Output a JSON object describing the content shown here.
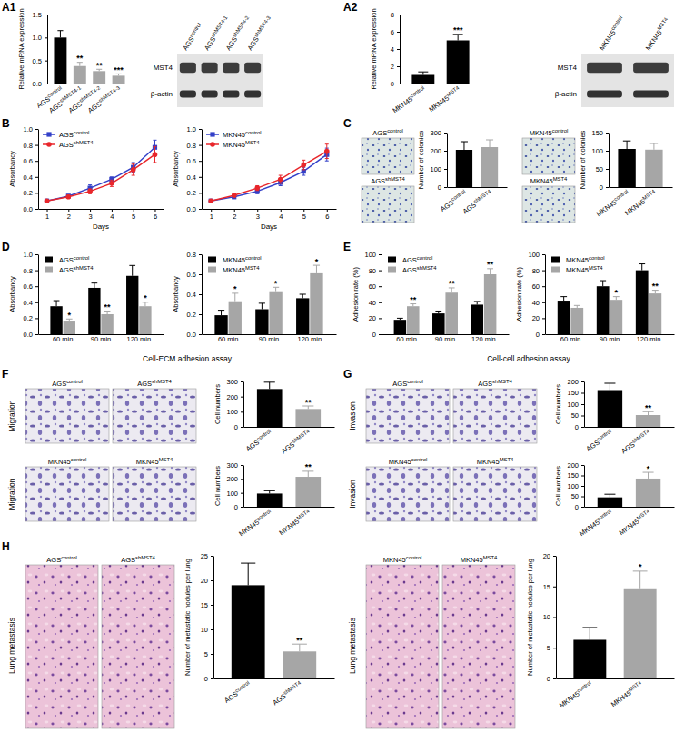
{
  "chart_data": [
    {
      "type": "bar",
      "ylabel": "Relative mRNA expression",
      "categories": [
        "AGScontrol",
        "AGSshMST4-1",
        "AGSshMST4-2",
        "AGSshMST4-3"
      ],
      "values": [
        1.0,
        0.38,
        0.27,
        0.17
      ],
      "errors": [
        0.15,
        0.08,
        0.04,
        0.04
      ],
      "annotations": [
        null,
        "**",
        "**",
        "***"
      ],
      "colors": [
        "#000000",
        "#a6a6a6",
        "#a6a6a6",
        "#a6a6a6"
      ],
      "ylim": [
        0,
        1.5
      ],
      "yticks": [
        {
          "value": 0,
          "label": "0.0"
        },
        0.5,
        {
          "value": 1,
          "label": "1.0"
        },
        1.5
      ]
    },
    {
      "type": "bar",
      "ylabel": "Relative mRNA expression",
      "categories": [
        "MKN45control",
        "MKN45MST4"
      ],
      "values": [
        1.0,
        5.0
      ],
      "errors": [
        0.35,
        0.7
      ],
      "annotations": [
        null,
        "***"
      ],
      "colors": [
        "#000000",
        "#000000"
      ],
      "ylim": [
        0,
        8
      ],
      "yticks": [
        0,
        2,
        4,
        6,
        8
      ]
    },
    {
      "type": "line",
      "ylabel": "Absorbancy",
      "xlabel": "Days",
      "x": [
        1,
        2,
        3,
        4,
        5,
        6
      ],
      "xlim": [
        0.6,
        6.4
      ],
      "xticks": [
        1,
        2,
        3,
        4,
        5,
        6
      ],
      "ylim": [
        0,
        1
      ],
      "yticks": [
        {
          "value": 0,
          "label": "0.0"
        },
        0.2,
        0.4,
        0.6,
        0.8,
        {
          "value": 1,
          "label": "1.0"
        }
      ],
      "legend": "upper left",
      "series": [
        {
          "name": "AGScontrol",
          "color": "#3340c8",
          "marker": "square",
          "values": [
            0.1,
            0.16,
            0.26,
            0.37,
            0.52,
            0.77
          ],
          "errors": [
            0.01,
            0.02,
            0.04,
            0.03,
            0.06,
            0.09
          ]
        },
        {
          "name": "AGSshMST4",
          "color": "#e8262b",
          "marker": "circle",
          "values": [
            0.1,
            0.15,
            0.22,
            0.32,
            0.49,
            0.68
          ],
          "errors": [
            0.01,
            0.02,
            0.03,
            0.04,
            0.07,
            0.1
          ]
        }
      ]
    },
    {
      "type": "line",
      "ylabel": "Absorbancy",
      "xlabel": "Days",
      "x": [
        1,
        2,
        3,
        4,
        5,
        6
      ],
      "xlim": [
        0.6,
        6.4
      ],
      "xticks": [
        1,
        2,
        3,
        4,
        5,
        6
      ],
      "ylim": [
        0,
        1
      ],
      "yticks": [
        {
          "value": 0,
          "label": "0.0"
        },
        0.2,
        0.4,
        0.6,
        0.8,
        {
          "value": 1,
          "label": "1.0"
        }
      ],
      "legend": "upper left",
      "series": [
        {
          "name": "MKN45control",
          "color": "#3340c8",
          "marker": "square",
          "values": [
            0.1,
            0.15,
            0.22,
            0.33,
            0.47,
            0.68
          ],
          "errors": [
            0.01,
            0.02,
            0.03,
            0.04,
            0.05,
            0.08
          ]
        },
        {
          "name": "MKN45MST4",
          "color": "#e8262b",
          "marker": "circle",
          "values": [
            0.1,
            0.17,
            0.26,
            0.37,
            0.55,
            0.72
          ],
          "errors": [
            0.01,
            0.02,
            0.03,
            0.05,
            0.06,
            0.09
          ]
        }
      ]
    },
    {
      "type": "bar",
      "ylabel": "Number of colonies",
      "categories": [
        "AGScontrol",
        "AGSshMST4"
      ],
      "values": [
        205,
        220
      ],
      "errors": [
        45,
        40
      ],
      "colors": [
        "#000000",
        "#a6a6a6"
      ],
      "ylim": [
        0,
        300
      ],
      "yticks": [
        0,
        100,
        200,
        300
      ]
    },
    {
      "type": "bar",
      "ylabel": "Number of colonies",
      "categories": [
        "MKN45control",
        "MKN45MST4"
      ],
      "values": [
        105,
        103
      ],
      "errors": [
        22,
        17
      ],
      "colors": [
        "#000000",
        "#a6a6a6"
      ],
      "ylim": [
        0,
        150
      ],
      "yticks": [
        0,
        50,
        100,
        150
      ]
    },
    {
      "type": "bar",
      "ylabel": "Absorbancy",
      "categories": [
        "60 min",
        "90 min",
        "120 min"
      ],
      "ylim": [
        0,
        1
      ],
      "yticks": [
        {
          "value": 0,
          "label": "0.0"
        },
        0.2,
        0.4,
        0.6,
        0.8,
        {
          "value": 1,
          "label": "1.0"
        }
      ],
      "legend": "upper left",
      "series": [
        {
          "name": "AGScontrol",
          "color": "#000000",
          "values": [
            0.35,
            0.58,
            0.73
          ],
          "errors": [
            0.07,
            0.06,
            0.13
          ]
        },
        {
          "name": "AGSshMST4",
          "color": "#a6a6a6",
          "values": [
            0.17,
            0.25,
            0.35
          ],
          "errors": [
            0.02,
            0.04,
            0.05
          ],
          "annotations": [
            "*",
            "**",
            "*"
          ]
        }
      ]
    },
    {
      "type": "bar",
      "ylabel": "Absorbancy",
      "categories": [
        "60 min",
        "90 min",
        "120 min"
      ],
      "ylim": [
        0,
        0.8
      ],
      "yticks": [
        {
          "value": 0,
          "label": "0.0"
        },
        0.2,
        0.4,
        0.6,
        0.8
      ],
      "legend": "upper left",
      "series": [
        {
          "name": "MKN45control",
          "color": "#000000",
          "values": [
            0.19,
            0.25,
            0.36
          ],
          "errors": [
            0.05,
            0.06,
            0.04
          ]
        },
        {
          "name": "MKN45MST4",
          "color": "#a6a6a6",
          "values": [
            0.33,
            0.43,
            0.61
          ],
          "errors": [
            0.08,
            0.04,
            0.08
          ],
          "annotations": [
            "*",
            "*",
            "*"
          ]
        }
      ]
    },
    {
      "type": "bar",
      "ylabel": "Adhesion rate (%)",
      "categories": [
        "60 min",
        "90 min",
        "120 min"
      ],
      "ylim": [
        0,
        100
      ],
      "yticks": [
        0,
        20,
        40,
        60,
        80,
        100
      ],
      "legend": "upper left",
      "series": [
        {
          "name": "AGScontrol",
          "color": "#000000",
          "values": [
            18,
            26,
            37
          ],
          "errors": [
            2,
            3,
            4
          ]
        },
        {
          "name": "AGSshMST4",
          "color": "#a6a6a6",
          "values": [
            35,
            52,
            75
          ],
          "errors": [
            3,
            6,
            7
          ],
          "annotations": [
            "**",
            "**",
            "**"
          ]
        }
      ]
    },
    {
      "type": "bar",
      "ylabel": "Adhesion rate (%)",
      "categories": [
        "60 min",
        "90 min",
        "120 min"
      ],
      "ylim": [
        0,
        100
      ],
      "yticks": [
        0,
        20,
        40,
        60,
        80,
        100
      ],
      "legend": "upper left",
      "series": [
        {
          "name": "MKN45control",
          "color": "#000000",
          "values": [
            42,
            60,
            80
          ],
          "errors": [
            5,
            7,
            8
          ]
        },
        {
          "name": "MKN45MST4",
          "color": "#a6a6a6",
          "values": [
            33,
            43,
            51
          ],
          "errors": [
            3,
            4,
            4
          ],
          "annotations": [
            null,
            "*",
            "**"
          ]
        }
      ]
    },
    {
      "type": "bar",
      "ylabel": "Cell numbers",
      "categories": [
        "AGScontrol",
        "AGSshMST4"
      ],
      "values": [
        250,
        118
      ],
      "errors": [
        45,
        20
      ],
      "annotations": [
        null,
        "**"
      ],
      "colors": [
        "#000000",
        "#a6a6a6"
      ],
      "ylim": [
        0,
        300
      ],
      "yticks": [
        0,
        100,
        200,
        300
      ]
    },
    {
      "type": "bar",
      "ylabel": "Cell numbers",
      "categories": [
        "MKN45control",
        "MKN45MST4"
      ],
      "values": [
        95,
        215
      ],
      "errors": [
        20,
        40
      ],
      "annotations": [
        null,
        "**"
      ],
      "colors": [
        "#000000",
        "#a6a6a6"
      ],
      "ylim": [
        0,
        300
      ],
      "yticks": [
        0,
        100,
        200,
        300
      ]
    },
    {
      "type": "bar",
      "ylabel": "Cell numbers",
      "categories": [
        "AGScontrol",
        "AGSshMST4"
      ],
      "values": [
        162,
        52
      ],
      "errors": [
        30,
        15
      ],
      "annotations": [
        null,
        "**"
      ],
      "colors": [
        "#000000",
        "#a6a6a6"
      ],
      "ylim": [
        0,
        200
      ],
      "yticks": [
        0,
        50,
        100,
        150,
        200
      ]
    },
    {
      "type": "bar",
      "ylabel": "Cell numbers",
      "categories": [
        "MKN45control",
        "MKN45MST4"
      ],
      "values": [
        45,
        135
      ],
      "errors": [
        15,
        30
      ],
      "annotations": [
        null,
        "*"
      ],
      "colors": [
        "#000000",
        "#a6a6a6"
      ],
      "ylim": [
        0,
        200
      ],
      "yticks": [
        0,
        50,
        100,
        150,
        200
      ]
    },
    {
      "type": "bar",
      "ylabel": "Number of metastatic nodules per lung",
      "categories": [
        "AGScontrol",
        "AGSshMST4"
      ],
      "values": [
        19,
        5.5
      ],
      "errors": [
        4.5,
        1.5
      ],
      "annotations": [
        null,
        "**"
      ],
      "colors": [
        "#000000",
        "#a6a6a6"
      ],
      "ylim": [
        0,
        25
      ],
      "yticks": [
        0,
        5,
        10,
        15,
        20,
        25
      ]
    },
    {
      "type": "bar",
      "ylabel": "Number of metastatic nodules per lung",
      "categories": [
        "MKN45control",
        "MKN45MST4"
      ],
      "values": [
        6.3,
        14.7
      ],
      "errors": [
        2,
        2.8
      ],
      "annotations": [
        null,
        "*"
      ],
      "colors": [
        "#000000",
        "#a6a6a6"
      ],
      "ylim": [
        0,
        20
      ],
      "yticks": [
        0,
        5,
        10,
        15,
        20
      ]
    }
  ],
  "figure": {
    "panel_labels": [
      "A1",
      "A2",
      "B",
      "C",
      "D",
      "E",
      "F",
      "G",
      "H"
    ],
    "blots": [
      {
        "lanes": [
          "AGScontrol",
          "AGSshMST4-1",
          "AGSshMST4-2",
          "AGSshMST4-3"
        ],
        "rows": [
          "MST4",
          "β-actin"
        ]
      },
      {
        "lanes": [
          "MKN45control",
          "MKN45MST4"
        ],
        "rows": [
          "MST4",
          "β-actin"
        ]
      }
    ],
    "image_labels": [
      "AGScontrol",
      "AGSshMST4",
      "MKN45control",
      "MKN45MST4",
      "AGScontrol",
      "AGSshMST4",
      "MKN45control",
      "MKN45MST4",
      "AGScontrol",
      "AGSshMST4",
      "MKN45control",
      "MKN45MST4",
      "AGScontrol",
      "AGSshMST4",
      "MKN45control",
      "MKN45MST4"
    ],
    "row_titles": [
      "Migration",
      "Migration",
      "Invasion",
      "Invasion",
      "Lung metastasis",
      "Lung metastasis"
    ],
    "captions": [
      "Cell-ECM adhesion assay",
      "Cell-cell adhesion assay"
    ]
  }
}
